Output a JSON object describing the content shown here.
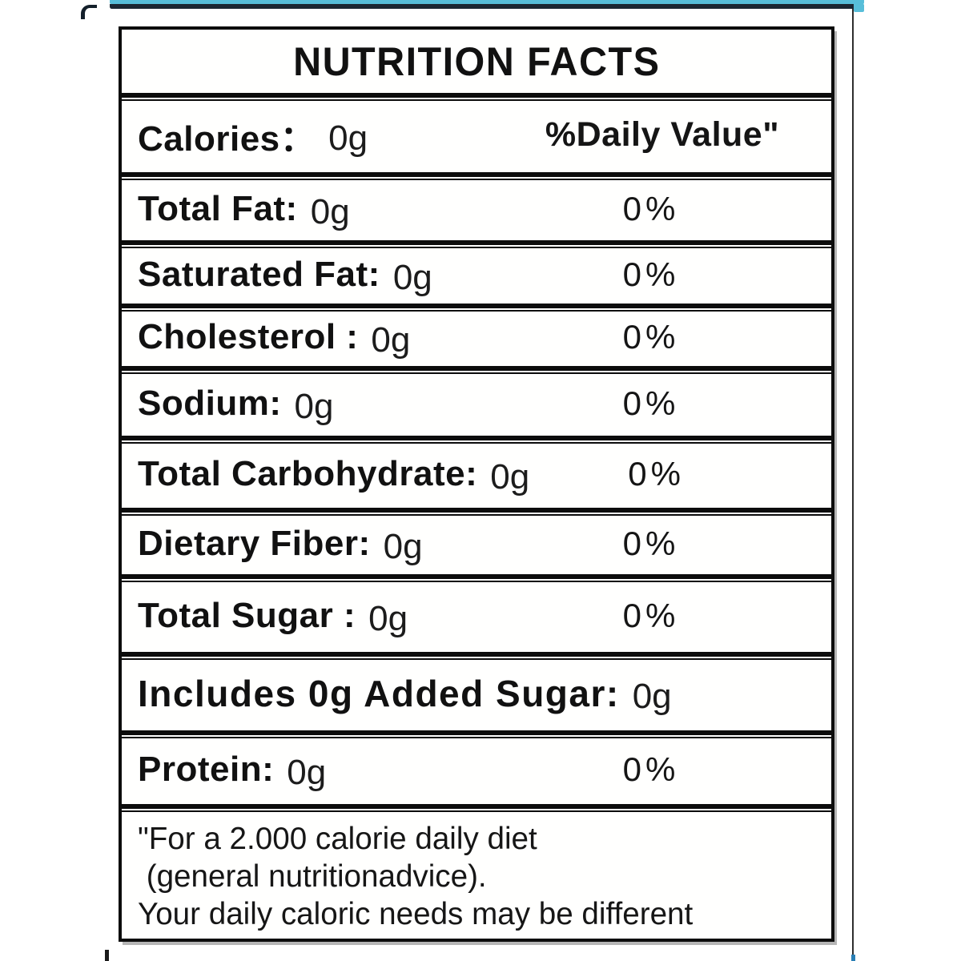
{
  "label": {
    "title": "NUTRITION FACTS",
    "calories_row": {
      "label": "Calories：",
      "value": "0g",
      "right": "%Daily Value\""
    },
    "rows": [
      {
        "label": "Total Fat:",
        "value": "0g",
        "pct": "0%"
      },
      {
        "label": "Saturated Fat:",
        "value": "0g",
        "pct": "0%"
      },
      {
        "label": "Cholesterol :",
        "value": "0g",
        "pct": "0%"
      },
      {
        "label": "Sodium:",
        "value": "0g",
        "pct": "0%"
      },
      {
        "label": "Total Carbohydrate:",
        "value": "0g",
        "pct": "0%"
      },
      {
        "label": "Dietary Fiber:",
        "value": "0g",
        "pct": "0%"
      },
      {
        "label": "Total Sugar :",
        "value": "0g",
        "pct": "0%"
      },
      {
        "label": "Includes 0g Added Sugar:",
        "value": "0g",
        "pct": ""
      },
      {
        "label": "Protein:",
        "value": "0g",
        "pct": "0%"
      }
    ],
    "footnote_lines": [
      "\"For a 2.000 calorie daily diet",
      " (general nutritionadvice).",
      "Your daily caloric needs may be different"
    ],
    "colors": {
      "accent_bar": "#57bed9",
      "accent_dark": "#1b2733",
      "border": "#0c0c0c",
      "text": "#111111"
    }
  }
}
